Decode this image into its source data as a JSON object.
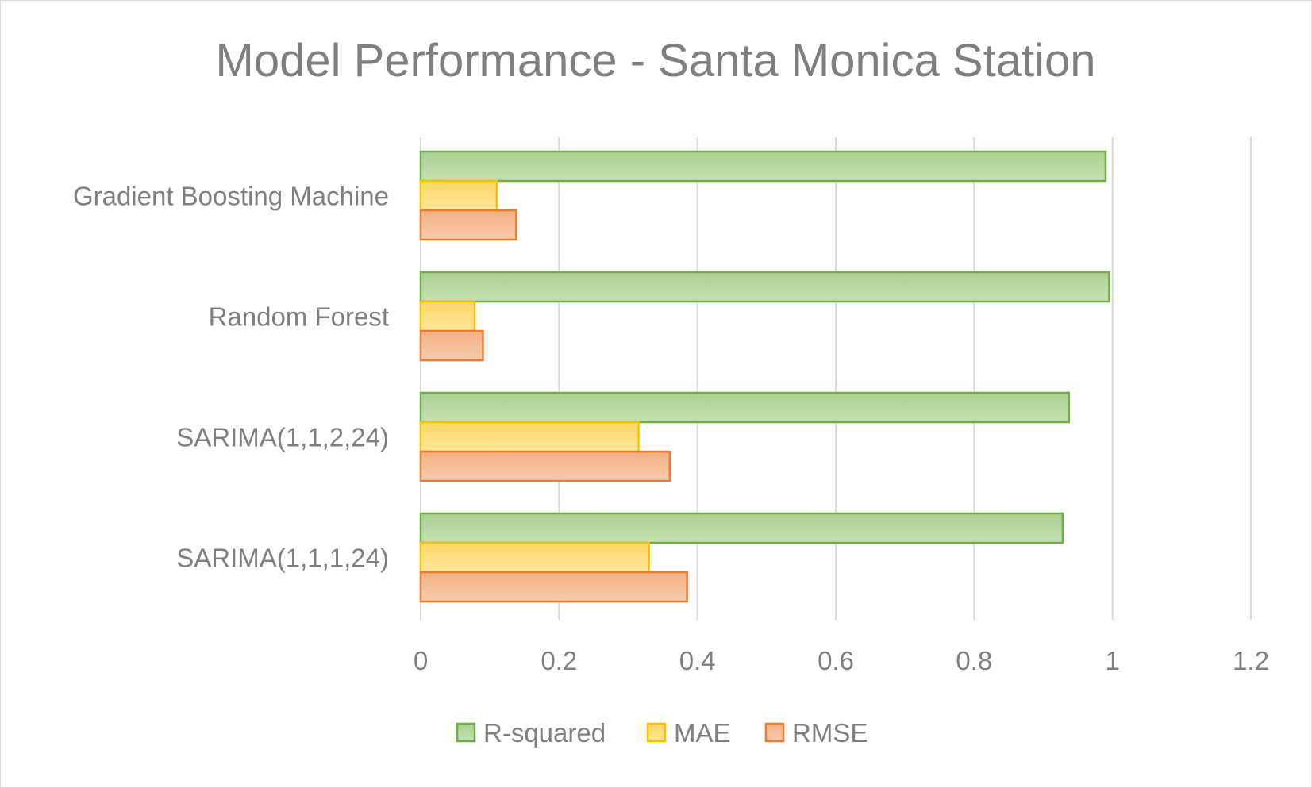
{
  "chart_data": {
    "type": "bar",
    "orientation": "horizontal",
    "title": "Model Performance - Santa Monica Station",
    "xlabel": "",
    "ylabel": "",
    "categories": [
      "Gradient Boosting Machine",
      "Random Forest",
      "SARIMA(1,1,2,24)",
      "SARIMA(1,1,1,24)"
    ],
    "series": [
      {
        "name": "R-squared",
        "values": [
          0.99,
          0.995,
          0.937,
          0.928
        ],
        "fill": "#a9d18e",
        "stroke": "#70ad47"
      },
      {
        "name": "MAE",
        "values": [
          0.11,
          0.078,
          0.315,
          0.33
        ],
        "fill": "#ffd966",
        "stroke": "#ffc000"
      },
      {
        "name": "RMSE",
        "values": [
          0.138,
          0.09,
          0.36,
          0.385
        ],
        "fill": "#f4b183",
        "stroke": "#ed7d31"
      }
    ],
    "xlim": [
      0,
      1.2
    ],
    "xticks": [
      "0",
      "0.2",
      "0.4",
      "0.6",
      "0.8",
      "1",
      "1.2"
    ],
    "grid": true,
    "legend": "bottom"
  }
}
